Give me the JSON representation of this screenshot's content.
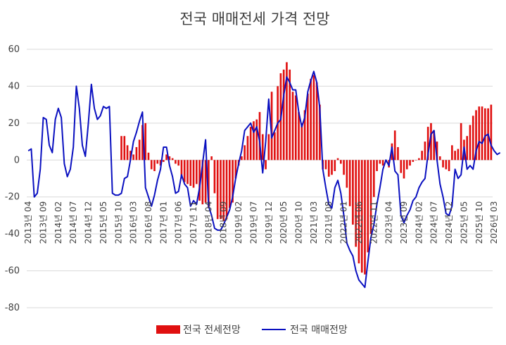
{
  "chart_data": {
    "type": "bar+line",
    "title": "전국 매매전세 가격 전망",
    "xlabel": "",
    "ylabel": "",
    "ylim": [
      -80,
      60
    ],
    "yticks": [
      60,
      40,
      20,
      0,
      -20,
      -40,
      -60,
      -80
    ],
    "x_start": "2013-04",
    "x_tick_labels": [
      "2013년 04",
      "2013년 09",
      "2014년 02",
      "2014년 07",
      "2014년 12",
      "2015년 05",
      "2015년 10",
      "2016년 03",
      "2016년 08",
      "2017년 01",
      "2017년 06",
      "2017년 11",
      "2018년 04",
      "2018년 09",
      "2019년 02",
      "2019년 07",
      "2019년 12",
      "2020년 05",
      "2020년 10",
      "2021년 03",
      "2021년 08",
      "2022년 01",
      "2022년 06",
      "2022년 11",
      "2023년 04",
      "2023년 09",
      "2024년 02",
      "2024년 07",
      "2024년 12",
      "2025년 05",
      "2025년 10",
      "2026년 03"
    ],
    "legend_position": "bottom",
    "colors": {
      "bar": "#e01010",
      "line": "#0a10c0"
    },
    "series": [
      {
        "name": "전국 전세전망",
        "kind": "bar",
        "values": [
          null,
          null,
          null,
          null,
          null,
          null,
          null,
          null,
          null,
          null,
          null,
          null,
          null,
          null,
          null,
          null,
          null,
          null,
          null,
          null,
          null,
          null,
          null,
          null,
          null,
          null,
          null,
          null,
          null,
          null,
          null,
          13,
          13,
          8,
          5,
          3,
          7,
          11,
          19,
          20,
          4,
          -5,
          -6,
          -2,
          -3,
          -1,
          3,
          2,
          1,
          -2,
          -3,
          -10,
          -12,
          -13,
          -14,
          -15,
          -13,
          -22,
          -24,
          -23,
          -26,
          2,
          -18,
          -32,
          -32,
          -33,
          -32,
          -26,
          -23,
          -10,
          -3,
          2,
          8,
          13,
          18,
          21,
          22,
          26,
          14,
          -5,
          14,
          37,
          15,
          40,
          47,
          49,
          53,
          49,
          37,
          35,
          26,
          20,
          27,
          36,
          44,
          46,
          42,
          30,
          -5,
          -5,
          -9,
          -8,
          -6,
          1,
          -2,
          -8,
          -15,
          -25,
          -35,
          -47,
          -56,
          -61,
          -62,
          -50,
          -40,
          -20,
          -6,
          -2,
          -3,
          -1,
          -4,
          9,
          16,
          7,
          -7,
          -10,
          -5,
          -3,
          -1,
          0,
          1,
          5,
          10,
          18,
          20,
          16,
          10,
          2,
          -4,
          -5,
          -6,
          8,
          5,
          6,
          20,
          11,
          13,
          19,
          24,
          27,
          29,
          29,
          28,
          28,
          30
        ]
      },
      {
        "name": "전국 매매전망",
        "kind": "line",
        "values": [
          5,
          6,
          -20,
          -18,
          -5,
          23,
          22,
          8,
          4,
          22,
          28,
          23,
          -2,
          -9,
          -5,
          7,
          40,
          28,
          8,
          2,
          20,
          41,
          28,
          22,
          24,
          29,
          28,
          29,
          -18,
          -19,
          -19,
          -18,
          -10,
          -9,
          0,
          10,
          15,
          21,
          26,
          -15,
          -20,
          -25,
          -19,
          -11,
          -5,
          7,
          7,
          -3,
          -9,
          -18,
          -17,
          -8,
          -13,
          -15,
          -25,
          -22,
          -24,
          -15,
          -2,
          11,
          -25,
          -30,
          -37,
          -38,
          -38,
          -35,
          -31,
          -27,
          -20,
          -10,
          -2,
          5,
          16,
          18,
          20,
          15,
          18,
          10,
          -7,
          10,
          33,
          12,
          16,
          20,
          22,
          35,
          45,
          42,
          38,
          38,
          26,
          18,
          23,
          37,
          43,
          48,
          42,
          28,
          -5,
          -15,
          -24,
          -26,
          -15,
          -11,
          -18,
          -30,
          -45,
          -49,
          -52,
          -60,
          -65,
          -67,
          -69,
          -55,
          -42,
          -35,
          -24,
          -15,
          -5,
          0,
          -3,
          7,
          -6,
          -8,
          -30,
          -34,
          -30,
          -27,
          -22,
          -20,
          -15,
          -12,
          -10,
          3,
          14,
          16,
          0,
          -13,
          -20,
          -29,
          -30,
          -25,
          -5,
          -10,
          -8,
          7,
          -5,
          -3,
          -5,
          5,
          10,
          9,
          13,
          14,
          8,
          5,
          3,
          4
        ]
      }
    ]
  }
}
